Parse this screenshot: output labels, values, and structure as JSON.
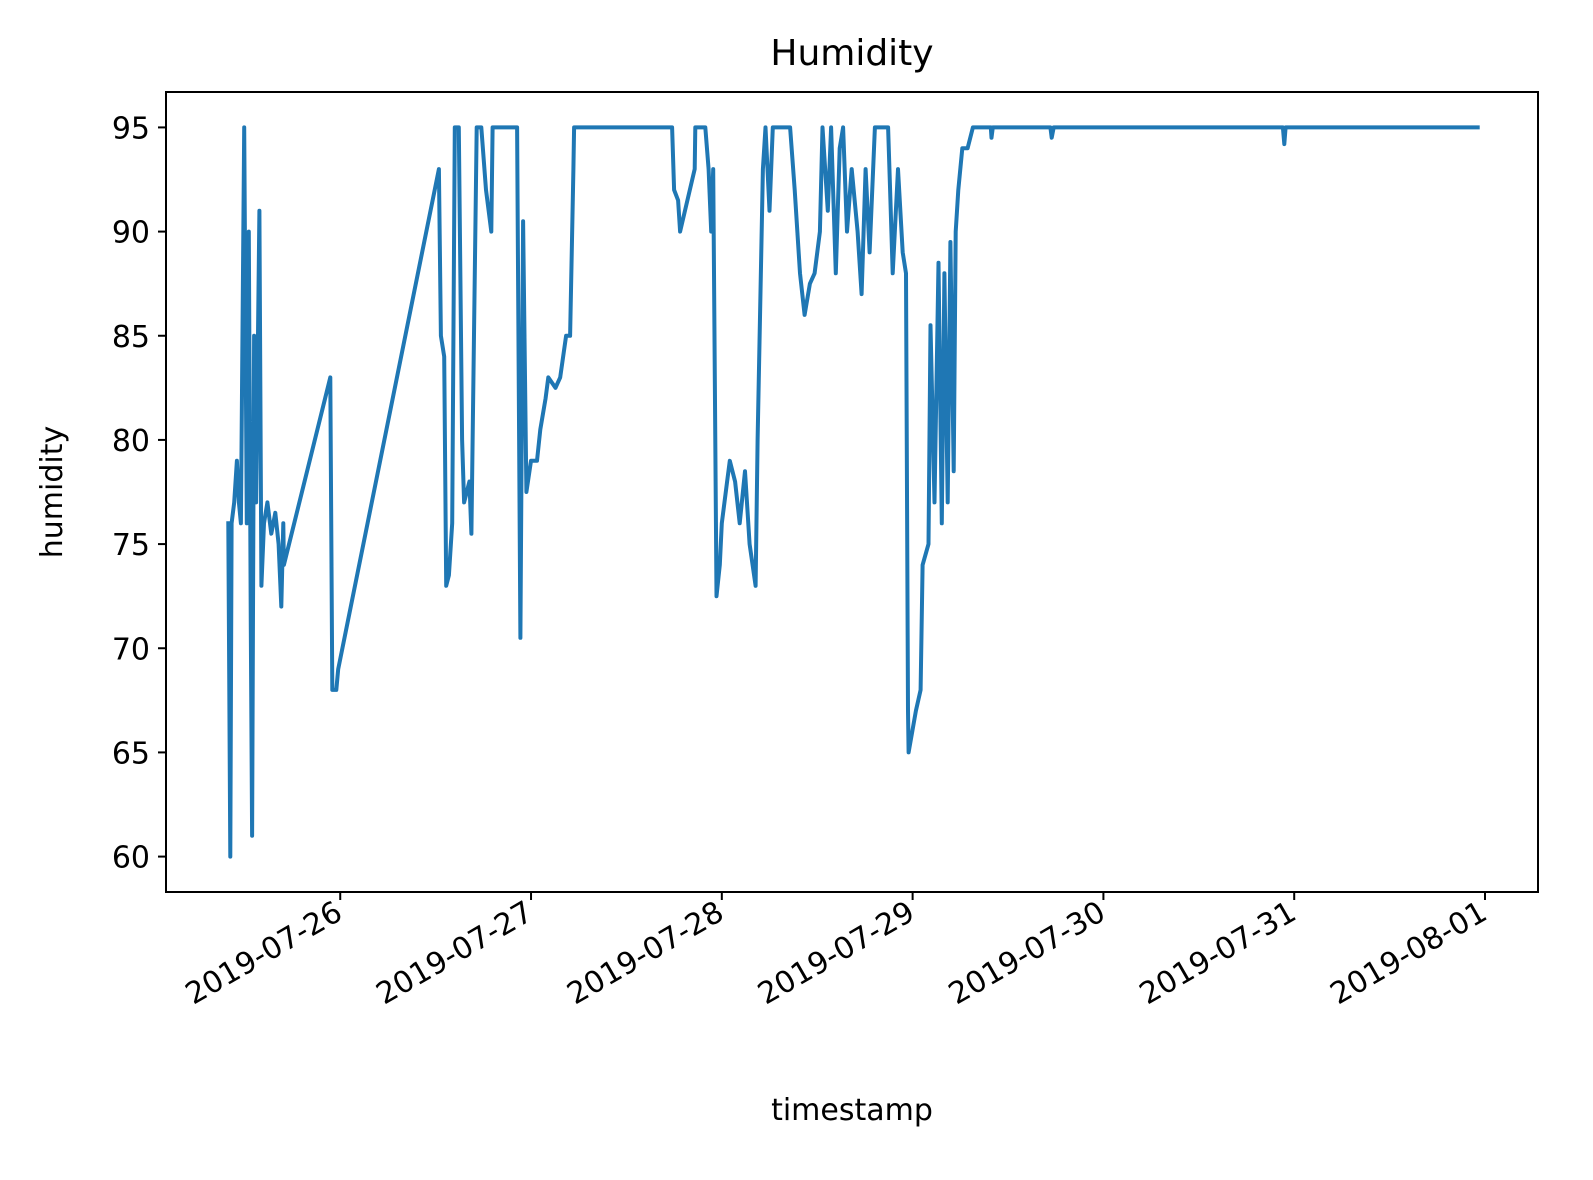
{
  "chart_data": {
    "type": "line",
    "title": "Humidity",
    "xlabel": "timestamp",
    "ylabel": "humidity",
    "color": "#1f77b4",
    "x": [
      "2019-07-25 09:55",
      "2019-07-25 10:10",
      "2019-07-25 10:20",
      "2019-07-25 10:40",
      "2019-07-25 11:00",
      "2019-07-25 11:15",
      "2019-07-25 11:30",
      "2019-07-25 11:55",
      "2019-07-25 12:15",
      "2019-07-25 12:30",
      "2019-07-25 12:45",
      "2019-07-25 12:55",
      "2019-07-25 13:10",
      "2019-07-25 13:25",
      "2019-07-25 13:50",
      "2019-07-25 14:05",
      "2019-07-25 14:25",
      "2019-07-25 14:50",
      "2019-07-25 15:20",
      "2019-07-25 15:50",
      "2019-07-25 16:15",
      "2019-07-25 16:35",
      "2019-07-25 16:50",
      "2019-07-25 16:55",
      "2019-07-25 22:45",
      "2019-07-25 23:00",
      "2019-07-25 23:30",
      "2019-07-25 23:45",
      "2019-07-26 12:25",
      "2019-07-26 12:40",
      "2019-07-26 13:05",
      "2019-07-26 13:20",
      "2019-07-26 13:40",
      "2019-07-26 14:05",
      "2019-07-26 14:25",
      "2019-07-26 14:55",
      "2019-07-26 15:20",
      "2019-07-26 15:35",
      "2019-07-26 16:15",
      "2019-07-26 16:30",
      "2019-07-26 17:10",
      "2019-07-26 17:45",
      "2019-07-26 18:20",
      "2019-07-26 19:00",
      "2019-07-26 19:10",
      "2019-07-26 22:15",
      "2019-07-26 22:40",
      "2019-07-26 23:00",
      "2019-07-26 23:25",
      "2019-07-27 00:00",
      "2019-07-27 00:45",
      "2019-07-27 01:10",
      "2019-07-27 01:50",
      "2019-07-27 02:10",
      "2019-07-27 03:05",
      "2019-07-27 03:40",
      "2019-07-27 04:25",
      "2019-07-27 04:55",
      "2019-07-27 05:20",
      "2019-07-27 05:25",
      "2019-07-27 17:45",
      "2019-07-27 18:00",
      "2019-07-27 18:30",
      "2019-07-27 18:45",
      "2019-07-27 20:35",
      "2019-07-27 20:40",
      "2019-07-27 21:55",
      "2019-07-27 22:20",
      "2019-07-27 22:40",
      "2019-07-27 22:55",
      "2019-07-27 23:20",
      "2019-07-27 23:45",
      "2019-07-28 00:00",
      "2019-07-28 00:40",
      "2019-07-28 01:00",
      "2019-07-28 01:40",
      "2019-07-28 02:15",
      "2019-07-28 02:55",
      "2019-07-28 03:30",
      "2019-07-28 04:15",
      "2019-07-28 04:30",
      "2019-07-28 05:10",
      "2019-07-28 05:30",
      "2019-07-28 06:00",
      "2019-07-28 06:25",
      "2019-07-28 08:35",
      "2019-07-28 09:10",
      "2019-07-28 09:50",
      "2019-07-28 10:25",
      "2019-07-28 11:05",
      "2019-07-28 11:40",
      "2019-07-28 12:20",
      "2019-07-28 12:40",
      "2019-07-28 13:20",
      "2019-07-28 13:45",
      "2019-07-28 14:20",
      "2019-07-28 14:50",
      "2019-07-28 15:15",
      "2019-07-28 15:45",
      "2019-07-28 16:20",
      "2019-07-28 17:05",
      "2019-07-28 17:35",
      "2019-07-28 18:05",
      "2019-07-28 18:35",
      "2019-07-28 19:15",
      "2019-07-28 20:55",
      "2019-07-28 21:10",
      "2019-07-28 21:30",
      "2019-07-28 22:10",
      "2019-07-28 22:45",
      "2019-07-28 23:10",
      "2019-07-28 23:25",
      "2019-07-28 23:30",
      "2019-07-29 00:25",
      "2019-07-29 01:00",
      "2019-07-29 01:15",
      "2019-07-29 02:00",
      "2019-07-29 02:15",
      "2019-07-29 02:45",
      "2019-07-29 03:15",
      "2019-07-29 03:40",
      "2019-07-29 04:00",
      "2019-07-29 04:25",
      "2019-07-29 04:45",
      "2019-07-29 05:10",
      "2019-07-29 05:25",
      "2019-07-29 05:45",
      "2019-07-29 06:15",
      "2019-07-29 06:55",
      "2019-07-29 07:35",
      "2019-07-29 09:50",
      "2019-07-29 09:55",
      "2019-07-29 10:05",
      "2019-07-29 17:20",
      "2019-07-29 17:30",
      "2019-07-29 17:45",
      "2019-07-30 22:35",
      "2019-07-30 22:45",
      "2019-07-30 22:55",
      "2019-07-31 23:05"
    ],
    "values": [
      76,
      60,
      76,
      77,
      79,
      77,
      76,
      95,
      76,
      90,
      71,
      61,
      85,
      77,
      91,
      73,
      76,
      77,
      75.5,
      76.5,
      75,
      72,
      76,
      74,
      83,
      68,
      68,
      69,
      93,
      85,
      84,
      73,
      73.5,
      76,
      95,
      95,
      80,
      77,
      78,
      75.5,
      95,
      95,
      92,
      90,
      95,
      95,
      70.5,
      90.5,
      77.5,
      79,
      79,
      80.5,
      82,
      83,
      82.5,
      83,
      85,
      85,
      93,
      95,
      95,
      92,
      91.5,
      90,
      93,
      95,
      95,
      93,
      90,
      93,
      72.5,
      74,
      76,
      78,
      79,
      78,
      76,
      78.5,
      75,
      73,
      80,
      93,
      95,
      91,
      95,
      95,
      92,
      88,
      86,
      87.5,
      88,
      90,
      95,
      91,
      95,
      88,
      94,
      95,
      90,
      93,
      90,
      87,
      93,
      89,
      95,
      95,
      92,
      88,
      93,
      89,
      88,
      67,
      65,
      67,
      68,
      74,
      75,
      85.5,
      77,
      88.5,
      76,
      88,
      77,
      89.5,
      78.5,
      90,
      92,
      94,
      94,
      95,
      95,
      94.5,
      95,
      95,
      94.5,
      95,
      95,
      94.2,
      95,
      95
    ],
    "xlim": [
      "2019-07-25 02:05",
      "2019-08-01 06:40"
    ],
    "xticks": [
      "2019-07-26",
      "2019-07-27",
      "2019-07-28",
      "2019-07-29",
      "2019-07-30",
      "2019-07-31",
      "2019-08-01"
    ],
    "ylim": [
      58.3,
      96.7
    ],
    "yticks": [
      60,
      65,
      70,
      75,
      80,
      85,
      90,
      95
    ]
  }
}
